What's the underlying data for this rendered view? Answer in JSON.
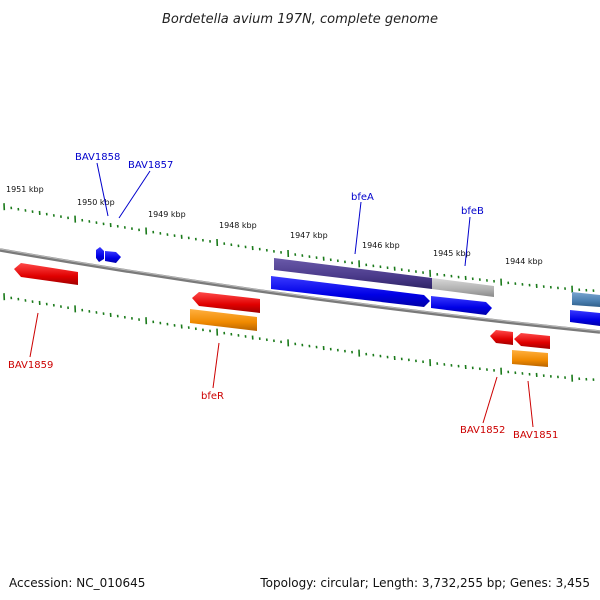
{
  "title": "Bordetella avium 197N, complete genome",
  "kbp_labels": [
    "1951 kbp",
    "1950 kbp",
    "1949 kbp",
    "1948 kbp",
    "1947 kbp",
    "1946 kbp",
    "1945 kbp",
    "1944 kbp"
  ],
  "genes_top": [
    "BAV1858",
    "BAV1857",
    "bfeA",
    "bfeB"
  ],
  "genes_bottom": [
    "BAV1859",
    "bfeR",
    "BAV1852",
    "BAV1851"
  ],
  "footer": {
    "accession": "Accession: NC_010645",
    "topology": "Topology: circular; Length: 3,732,255 bp; Genes: 3,455"
  },
  "colors": {
    "top_label": "#0000cc",
    "bottom_label": "#cc0000",
    "tick": "#1a7a1a",
    "backbone": "#7a7a7a"
  }
}
